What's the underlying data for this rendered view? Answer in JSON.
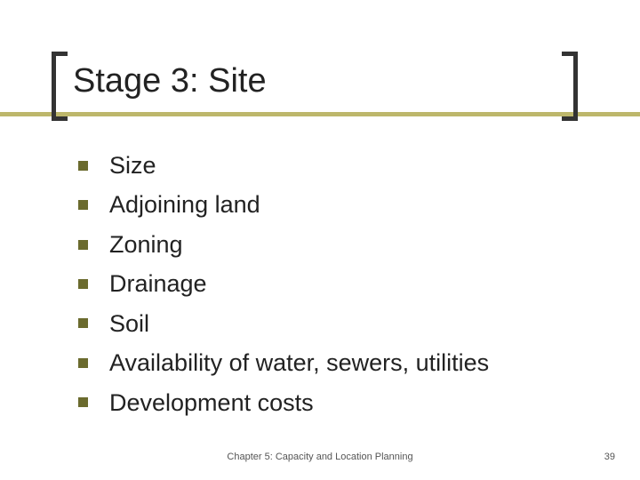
{
  "slide": {
    "title": "Stage 3: Site",
    "bullets": [
      "Size",
      "Adjoining land",
      "Zoning",
      "Drainage",
      "Soil",
      "Availability of water, sewers, utilities",
      "Development costs"
    ],
    "footer_center": "Chapter 5: Capacity and Location Planning",
    "page_number": "39"
  },
  "style": {
    "background_color": "#ffffff",
    "accent_color": "#bdb76b",
    "bracket_color": "#333333",
    "bullet_color": "#6b6b2e",
    "title_fontsize": 38,
    "body_fontsize": 27,
    "footer_fontsize": 11,
    "text_color": "#222222",
    "footer_color": "#555555"
  }
}
